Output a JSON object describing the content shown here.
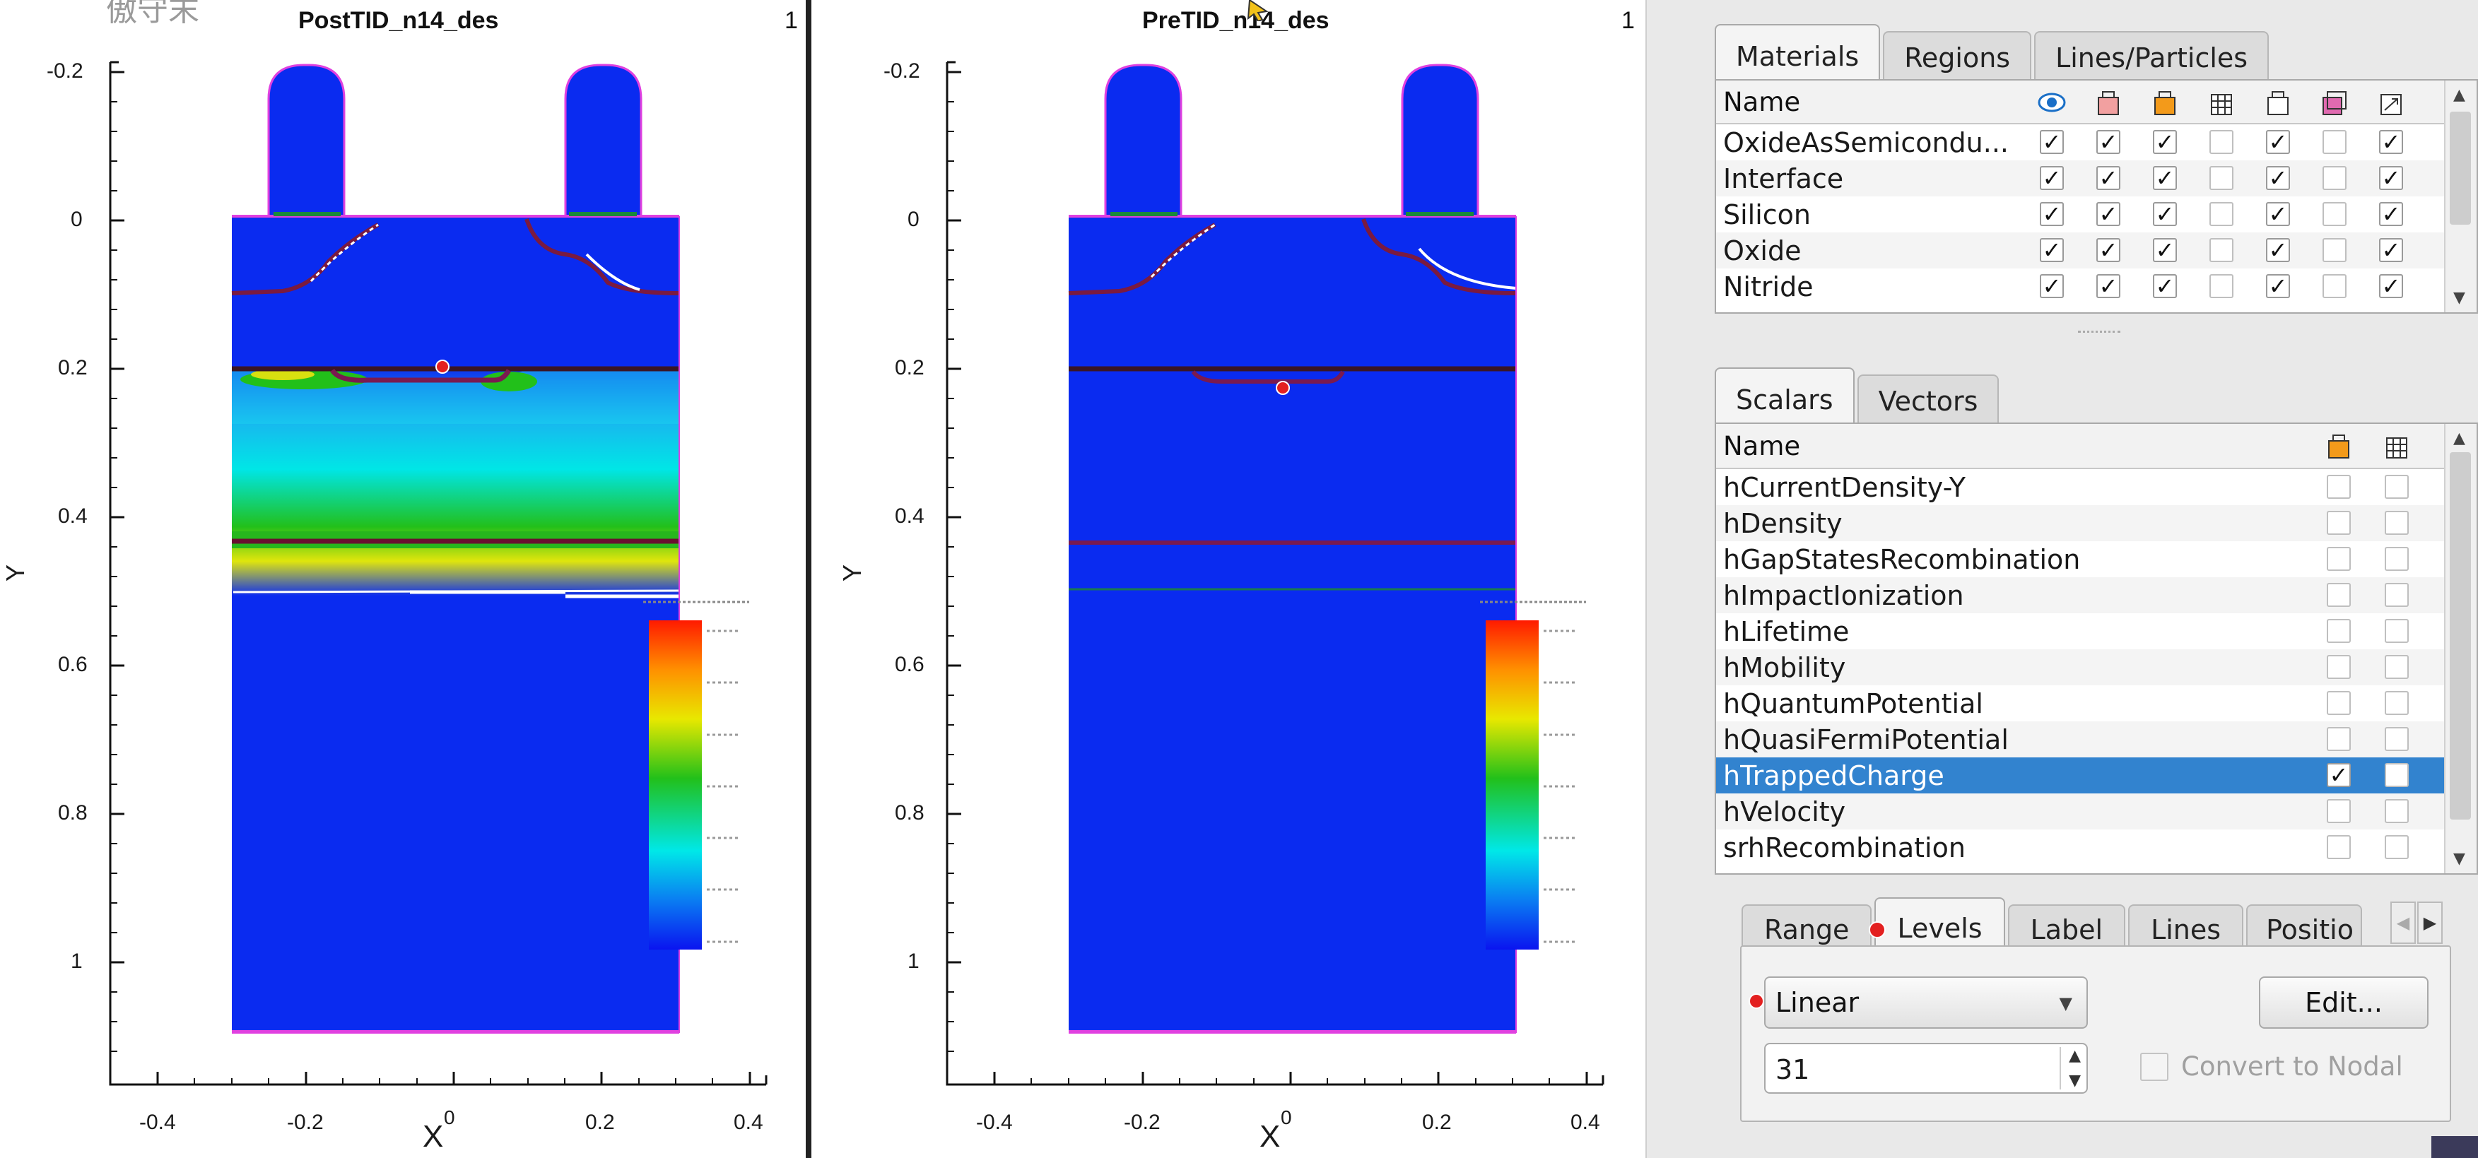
{
  "overlay_text": "傲守末",
  "plots": [
    {
      "title": "PostTID_n14_des",
      "corner_number": "1",
      "x_label": "X",
      "y_label": "Y",
      "x_ticks": [
        "-0.4",
        "-0.2",
        "0",
        "0.2",
        "0.4"
      ],
      "y_ticks": [
        "-0.2",
        "0",
        "0.2",
        "0.4",
        "0.6",
        "0.8",
        "1"
      ]
    },
    {
      "title": "PreTID_n14_des",
      "corner_number": "1",
      "x_label": "X",
      "y_label": "Y",
      "x_ticks": [
        "-0.4",
        "-0.2",
        "0",
        "0.2",
        "0.4"
      ],
      "y_ticks": [
        "-0.2",
        "0",
        "0.2",
        "0.4",
        "0.6",
        "0.8",
        "1"
      ]
    }
  ],
  "materials_tabs": [
    "Materials",
    "Regions",
    "Lines/Particles"
  ],
  "materials_table": {
    "header_name": "Name",
    "column_icons": [
      "eye-icon",
      "pink-box-icon",
      "orange-box-icon",
      "grid-box-icon",
      "outline-box-icon",
      "stacked-box-icon",
      "arrow-box-icon"
    ],
    "rows": [
      {
        "name": "OxideAsSemicondu...",
        "checks": [
          true,
          true,
          true,
          false,
          true,
          false,
          true
        ]
      },
      {
        "name": "Interface",
        "checks": [
          true,
          true,
          true,
          false,
          true,
          false,
          true
        ]
      },
      {
        "name": "Silicon",
        "checks": [
          true,
          true,
          true,
          false,
          true,
          false,
          true
        ]
      },
      {
        "name": "Oxide",
        "checks": [
          true,
          true,
          true,
          false,
          true,
          false,
          true
        ]
      },
      {
        "name": "Nitride",
        "checks": [
          true,
          true,
          true,
          false,
          true,
          false,
          true
        ]
      }
    ]
  },
  "scalar_tabs": [
    "Scalars",
    "Vectors"
  ],
  "scalars_table": {
    "header_name": "Name",
    "column_icons": [
      "orange-box-icon",
      "grid-box-icon"
    ],
    "rows": [
      {
        "name": "hCurrentDensity-Y",
        "checks": [
          false,
          false
        ],
        "selected": false
      },
      {
        "name": "hDensity",
        "checks": [
          false,
          false
        ],
        "selected": false
      },
      {
        "name": "hGapStatesRecombination",
        "checks": [
          false,
          false
        ],
        "selected": false
      },
      {
        "name": "hImpactIonization",
        "checks": [
          false,
          false
        ],
        "selected": false
      },
      {
        "name": "hLifetime",
        "checks": [
          false,
          false
        ],
        "selected": false
      },
      {
        "name": "hMobility",
        "checks": [
          false,
          false
        ],
        "selected": false
      },
      {
        "name": "hQuantumPotential",
        "checks": [
          false,
          false
        ],
        "selected": false
      },
      {
        "name": "hQuasiFermiPotential",
        "checks": [
          false,
          false
        ],
        "selected": false
      },
      {
        "name": "hTrappedCharge",
        "checks": [
          true,
          false
        ],
        "selected": true
      },
      {
        "name": "hVelocity",
        "checks": [
          false,
          false
        ],
        "selected": false
      },
      {
        "name": "srhRecombination",
        "checks": [
          false,
          false
        ],
        "selected": false
      }
    ]
  },
  "sub_tabs": [
    "Range",
    "Levels",
    "Label",
    "Lines",
    "Positio"
  ],
  "active_sub_tab": "Levels",
  "levels": {
    "scale_value": "Linear",
    "edit_label": "Edit...",
    "count_value": "31",
    "convert_label": "Convert to Nodal",
    "convert_checked": false
  },
  "colors": {
    "device_blue": "#0a2bf0",
    "selection": "#3283cf",
    "outline": "#e040e0",
    "accent_red": "#e32020"
  }
}
